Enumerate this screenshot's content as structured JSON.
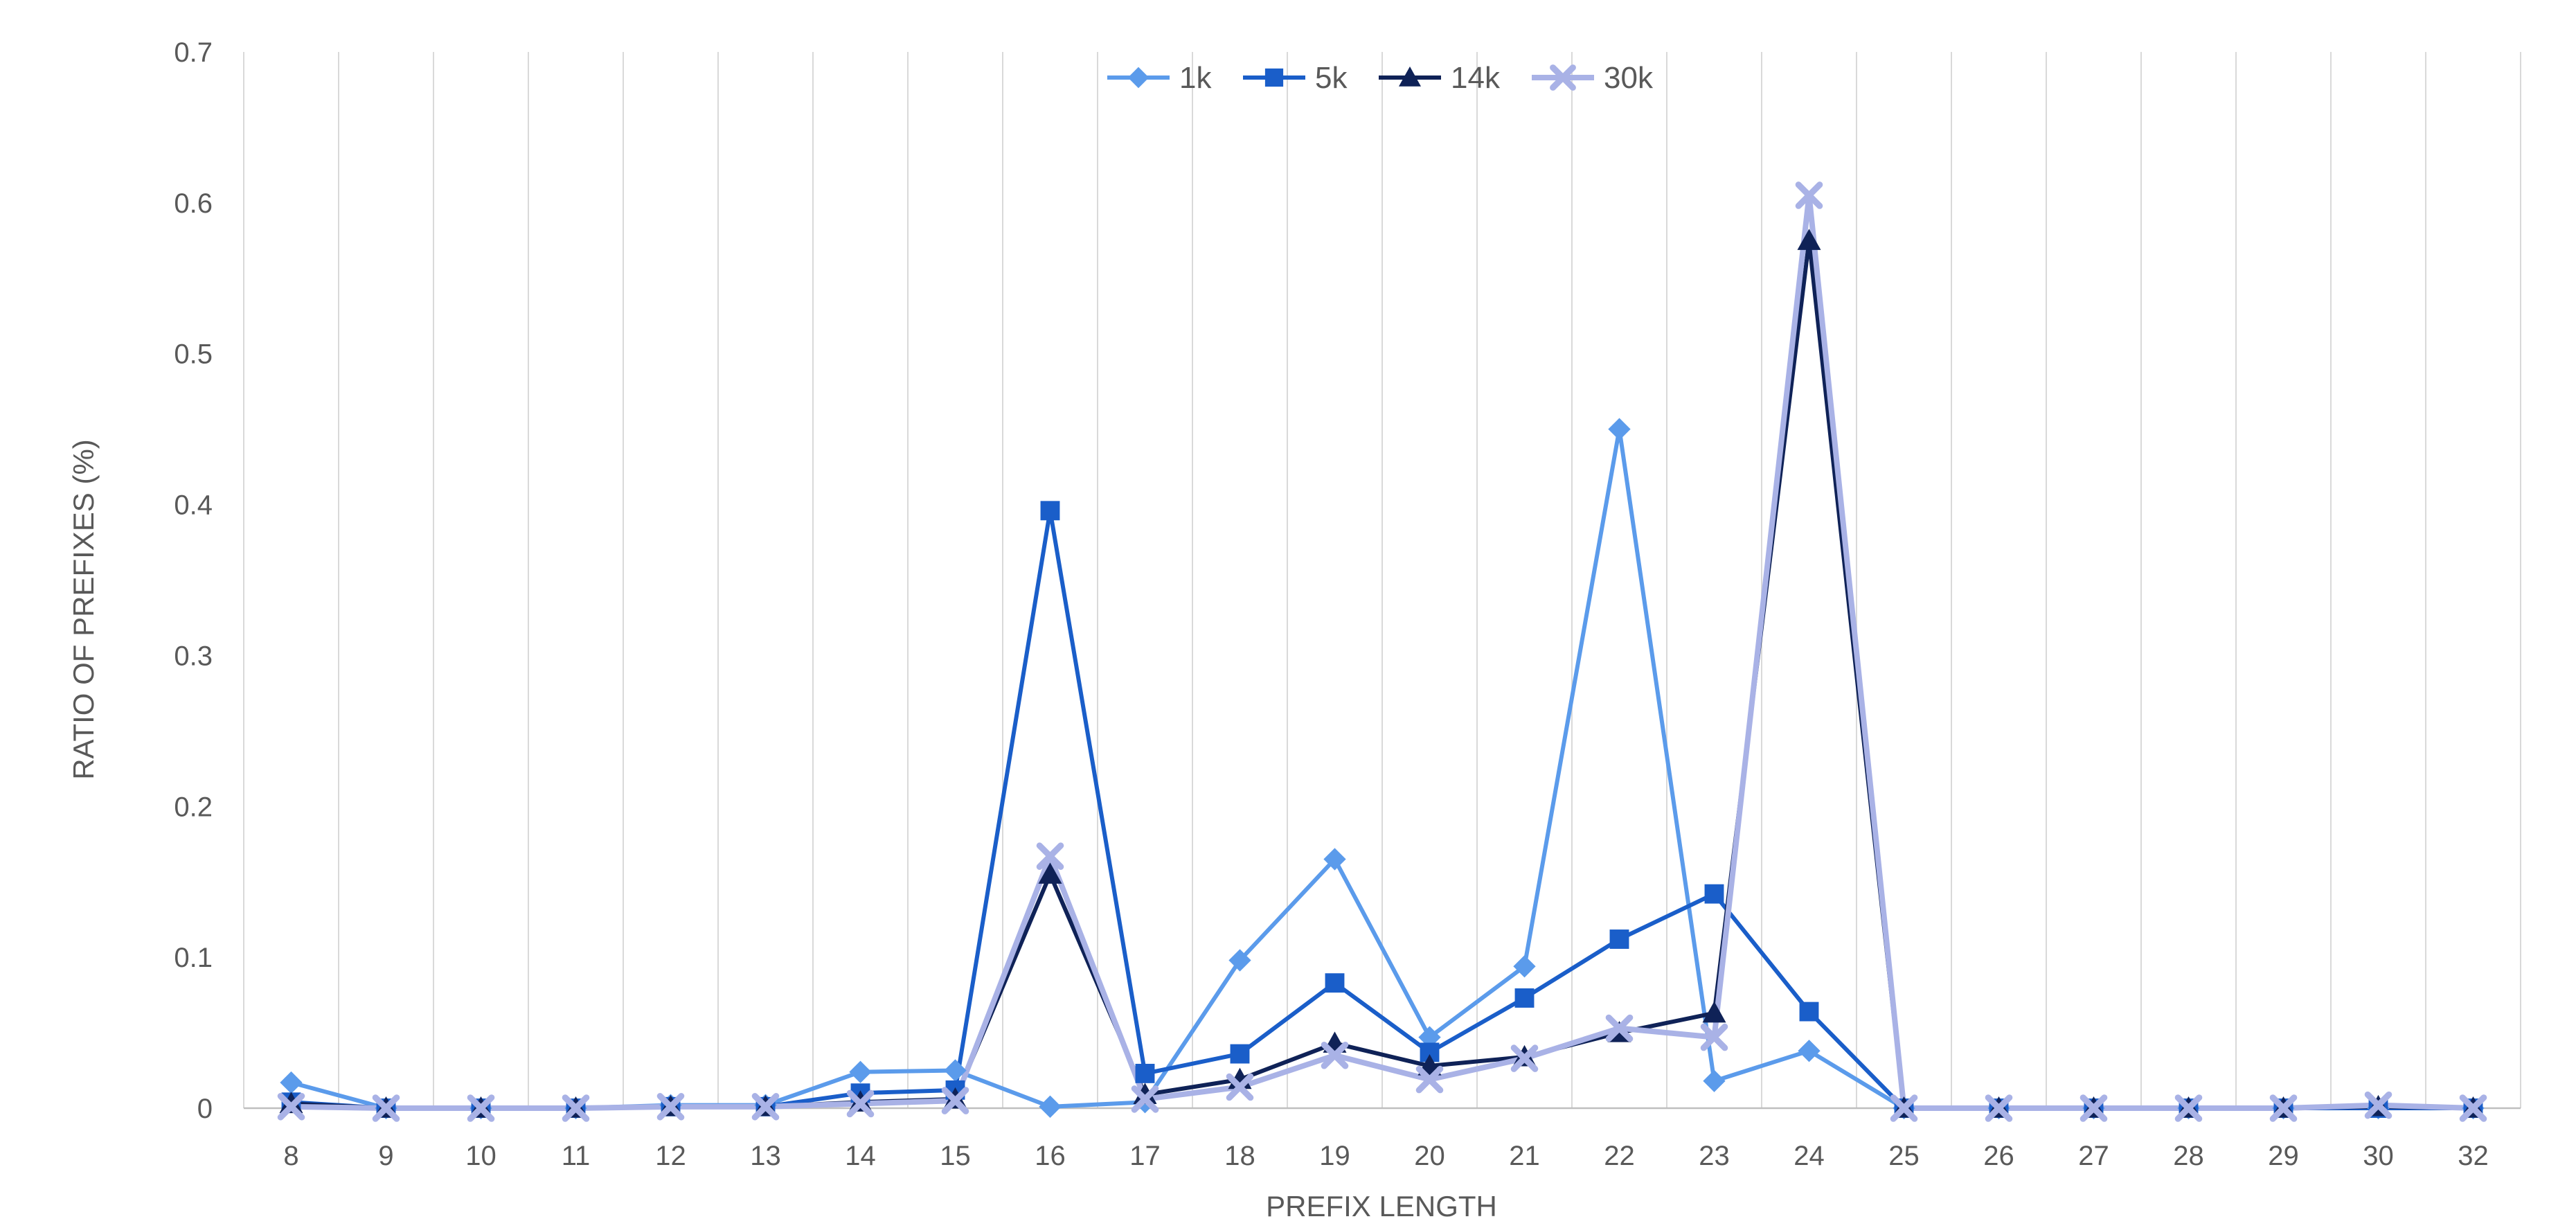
{
  "chart_data": {
    "type": "line",
    "title": "",
    "xlabel": "PREFIX LENGTH",
    "ylabel": "RATIO OF PREFIXES (%)",
    "categories": [
      "8",
      "9",
      "10",
      "11",
      "12",
      "13",
      "14",
      "15",
      "16",
      "17",
      "18",
      "19",
      "20",
      "21",
      "22",
      "23",
      "24",
      "25",
      "26",
      "27",
      "28",
      "29",
      "30",
      "32"
    ],
    "ylim": [
      0,
      0.7
    ],
    "yticks": [
      0,
      0.1,
      0.2,
      0.3,
      0.4,
      0.5,
      0.6,
      0.7
    ],
    "ytick_labels": [
      "0",
      "0.1",
      "0.2",
      "0.3",
      "0.4",
      "0.5",
      "0.6",
      "0.7"
    ],
    "grid": "vertical",
    "legend_position": "top-center",
    "series": [
      {
        "name": "1k",
        "color": "#5B9BEB",
        "marker": "diamond",
        "values": [
          0.017,
          0,
          0,
          0,
          0.002,
          0.002,
          0.024,
          0.025,
          0.001,
          0.004,
          0.098,
          0.165,
          0.047,
          0.094,
          0.45,
          0.018,
          0.038,
          0,
          0,
          0,
          0,
          0,
          0,
          0
        ]
      },
      {
        "name": "5k",
        "color": "#1A5EC9",
        "marker": "square",
        "values": [
          0.004,
          0,
          0,
          0,
          0.001,
          0.001,
          0.01,
          0.012,
          0.396,
          0.023,
          0.036,
          0.083,
          0.037,
          0.073,
          0.112,
          0.142,
          0.064,
          0,
          0,
          0,
          0,
          0,
          0,
          0
        ]
      },
      {
        "name": "14k",
        "color": "#0F2257",
        "marker": "triangle",
        "values": [
          0.003,
          0,
          0,
          0,
          0.001,
          0.001,
          0.004,
          0.006,
          0.155,
          0.009,
          0.019,
          0.043,
          0.028,
          0.034,
          0.05,
          0.063,
          0.575,
          0,
          0,
          0,
          0,
          0,
          0.001,
          0
        ]
      },
      {
        "name": "30k",
        "color": "#A9B2E6",
        "marker": "x",
        "values": [
          0.001,
          0,
          0,
          0,
          0.001,
          0.001,
          0.003,
          0.005,
          0.167,
          0.006,
          0.014,
          0.035,
          0.019,
          0.033,
          0.053,
          0.047,
          0.605,
          0,
          0,
          0,
          0,
          0,
          0.002,
          0
        ]
      }
    ]
  }
}
